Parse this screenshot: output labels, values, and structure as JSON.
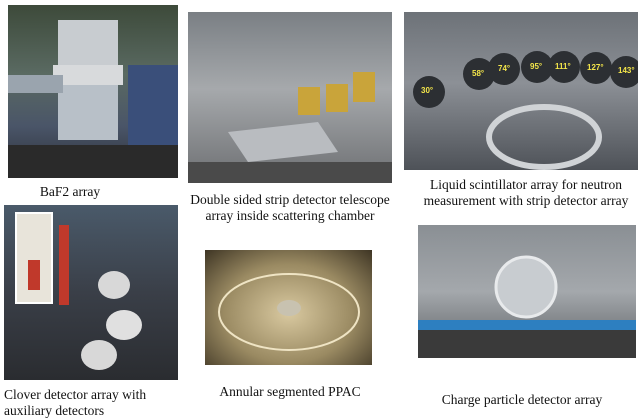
{
  "panels": [
    {
      "caption": [
        "BaF2 array"
      ]
    },
    {
      "caption": [
        "Double sided strip detector telescope",
        "array  inside scattering chamber"
      ]
    },
    {
      "caption": [
        "Liquid scintillator array for neutron",
        "measurement with strip detector array"
      ],
      "photo_labels": [
        "30°",
        "58°",
        "74°",
        "95°",
        "111°",
        "127°",
        "143°"
      ]
    },
    {
      "caption": [
        "Clover detector array with",
        "auxiliary detectors"
      ]
    },
    {
      "caption": [
        "Annular segmented  PPAC"
      ]
    },
    {
      "caption": [
        "Charge particle detector array"
      ]
    }
  ]
}
